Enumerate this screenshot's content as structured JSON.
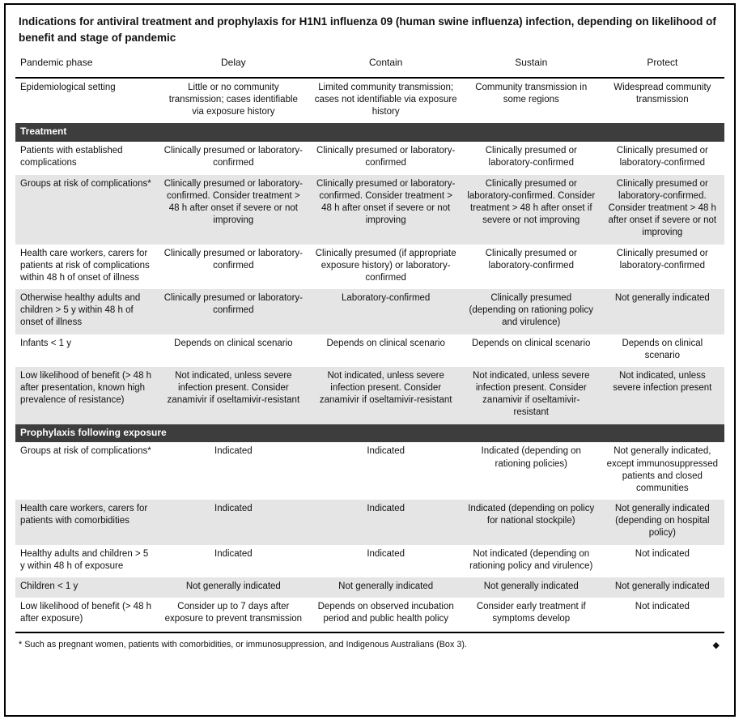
{
  "title": "Indications for antiviral treatment and prophylaxis for H1N1 influenza 09 (human swine influenza) infection, depending on likelihood of benefit and stage of pandemic",
  "columns": [
    "Pandemic phase",
    "Delay",
    "Contain",
    "Sustain",
    "Protect"
  ],
  "colors": {
    "section_bar": "#3d3d3d",
    "shaded_row": "#e5e5e5",
    "border": "#000000"
  },
  "chart_data": {
    "type": "table",
    "title": "Indications for antiviral treatment and prophylaxis for H1N1 influenza 09 (human swine influenza) infection, depending on likelihood of benefit and stage of pandemic",
    "columns": [
      "Pandemic phase",
      "Delay",
      "Contain",
      "Sustain",
      "Protect"
    ]
  },
  "intro_row": {
    "label": "Epidemiological setting",
    "shaded": false,
    "cells": [
      "Little or no community transmission; cases identifiable via exposure history",
      "Limited community transmission; cases not identifiable via exposure history",
      "Community transmission in some regions",
      "Widespread community transmission"
    ]
  },
  "sections": [
    {
      "header": "Treatment",
      "rows": [
        {
          "label": "Patients with established complications",
          "shaded": false,
          "cells": [
            "Clinically presumed or laboratory-confirmed",
            "Clinically presumed or laboratory-confirmed",
            "Clinically presumed or laboratory-confirmed",
            "Clinically presumed or laboratory-confirmed"
          ]
        },
        {
          "label": "Groups at risk of complications*",
          "shaded": true,
          "cells": [
            "Clinically presumed or laboratory-confirmed. Consider treatment > 48 h after onset if severe or not improving",
            "Clinically presumed or laboratory-confirmed. Consider treatment > 48 h after onset if severe or not improving",
            "Clinically presumed or laboratory-confirmed. Consider treatment > 48 h after onset if severe or not improving",
            "Clinically presumed or laboratory-confirmed. Consider treatment > 48 h after onset if severe or not improving"
          ]
        },
        {
          "label": "Health care workers, carers for patients at risk of complications within 48 h of onset of illness",
          "shaded": false,
          "cells": [
            "Clinically presumed or laboratory-confirmed",
            "Clinically presumed (if appropriate exposure history) or laboratory-confirmed",
            "Clinically presumed or laboratory-confirmed",
            "Clinically presumed or laboratory-confirmed"
          ]
        },
        {
          "label": "Otherwise healthy adults and children > 5 y within 48 h of onset of illness",
          "shaded": true,
          "cells": [
            "Clinically presumed or laboratory-confirmed",
            "Laboratory-confirmed",
            "Clinically presumed (depending on rationing policy and virulence)",
            "Not generally indicated"
          ]
        },
        {
          "label": "Infants < 1 y",
          "shaded": false,
          "cells": [
            "Depends on clinical scenario",
            "Depends on clinical scenario",
            "Depends on clinical scenario",
            "Depends on clinical scenario"
          ]
        },
        {
          "label": "Low likelihood of benefit (> 48 h after presentation, known high prevalence of resistance)",
          "shaded": true,
          "cells": [
            "Not indicated, unless severe infection present. Consider zanamivir if oseltamivir-resistant",
            "Not indicated, unless severe infection present. Consider zanamivir if oseltamivir-resistant",
            "Not indicated, unless severe infection present. Consider zanamivir if oseltamivir-resistant",
            "Not indicated, unless severe infection present"
          ]
        }
      ]
    },
    {
      "header": "Prophylaxis following exposure",
      "rows": [
        {
          "label": "Groups at risk of complications*",
          "shaded": false,
          "cells": [
            "Indicated",
            "Indicated",
            "Indicated (depending on rationing policies)",
            "Not generally indicated, except immunosuppressed patients and closed communities"
          ]
        },
        {
          "label": "Health care workers, carers for patients with comorbidities",
          "shaded": true,
          "cells": [
            "Indicated",
            "Indicated",
            "Indicated (depending on policy for national stockpile)",
            "Not generally indicated (depending on hospital policy)"
          ]
        },
        {
          "label": "Healthy adults and children > 5 y within 48 h of exposure",
          "shaded": false,
          "cells": [
            "Indicated",
            "Indicated",
            "Not indicated (depending on rationing policy and virulence)",
            "Not indicated"
          ]
        },
        {
          "label": "Children < 1 y",
          "shaded": true,
          "cells": [
            "Not generally indicated",
            "Not generally indicated",
            "Not generally indicated",
            "Not generally indicated"
          ]
        },
        {
          "label": "Low likelihood of benefit (> 48 h after exposure)",
          "shaded": false,
          "cells": [
            "Consider up to 7 days after exposure to prevent transmission",
            "Depends on observed incubation period and public health policy",
            "Consider early treatment if symptoms develop",
            "Not indicated"
          ]
        }
      ]
    }
  ],
  "footnote": "* Such as pregnant women, patients with comorbidities, or immunosuppression, and Indigenous Australians (Box 3).",
  "footnote_marker": "◆"
}
